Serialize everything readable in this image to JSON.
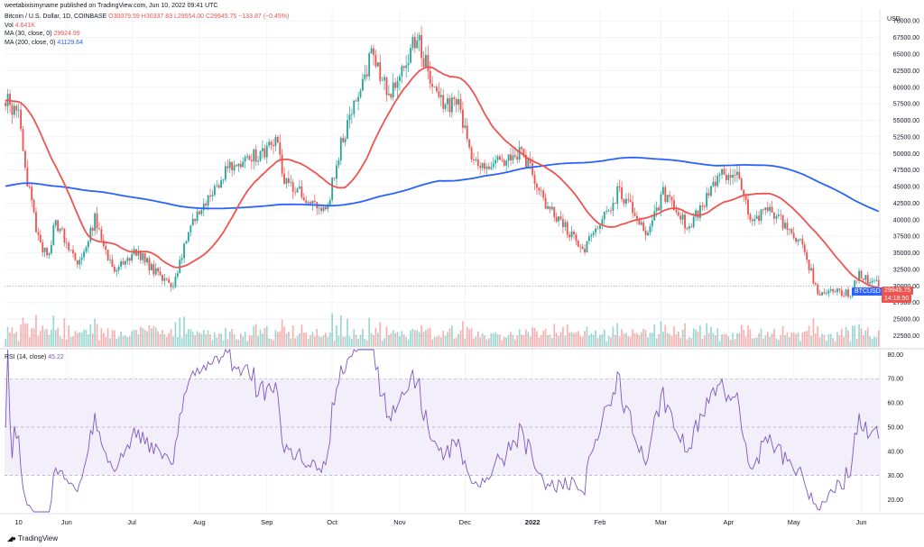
{
  "publish_line": "weetabixismyname published on TradingView.com, Jun 10, 2022 09:41 UTC",
  "legend": {
    "symbol_line": "Bitcoin / U.S. Dollar, 1D, COINBASE",
    "open": "O30079.59",
    "high": "H30337.83",
    "low": "L29554.00",
    "close": "C29945.75",
    "change": "−133.87 (−0.45%)",
    "vol_label": "Vol",
    "vol_value": "4.641K",
    "ma30_label": "MA (30, close, 0)",
    "ma30_value": "29924.99",
    "ma200_label": "MA (200, close, 0)",
    "ma200_value": "41129.64",
    "rsi_label": "RSI (14, close)",
    "rsi_value": "45.22"
  },
  "price_tags": {
    "symbol": "BTCUSD",
    "price": "29945.75",
    "countdown": "14:18:50"
  },
  "brand": "TradingView",
  "colors": {
    "up": "#26a69a",
    "down": "#ef5350",
    "ma30": "#ef5350",
    "ma200": "#2962ff",
    "rsi": "#7e57c2",
    "rsi_band": "#f3effa"
  },
  "chart_data": [
    {
      "type": "candlestick",
      "title": "Bitcoin / U.S. Dollar, 1D, COINBASE",
      "currency_label": "USD",
      "y_ticks": [
        22500,
        25000,
        27500,
        30000,
        32500,
        35000,
        37500,
        40000,
        42500,
        45000,
        47500,
        50000,
        52500,
        55000,
        57500,
        60000,
        62500,
        65000,
        67500,
        70000
      ],
      "ylim": [
        20800,
        71800
      ],
      "x_ticks": [
        "10",
        "Jun",
        "Jul",
        "Aug",
        "Sep",
        "Oct",
        "Nov",
        "Dec",
        "2022",
        "Feb",
        "Mar",
        "Apr",
        "May",
        "Jun"
      ],
      "close_anchors": [
        {
          "date": "2021-05-10",
          "close": 56000
        },
        {
          "date": "2021-05-12",
          "close": 49500
        },
        {
          "date": "2021-05-19",
          "close": 37000
        },
        {
          "date": "2021-05-23",
          "close": 34500
        },
        {
          "date": "2021-05-27",
          "close": 39500
        },
        {
          "date": "2021-06-07",
          "close": 33500
        },
        {
          "date": "2021-06-14",
          "close": 40000
        },
        {
          "date": "2021-06-22",
          "close": 32500
        },
        {
          "date": "2021-07-03",
          "close": 35000
        },
        {
          "date": "2021-07-20",
          "close": 29800
        },
        {
          "date": "2021-07-26",
          "close": 37500
        },
        {
          "date": "2021-08-07",
          "close": 44500
        },
        {
          "date": "2021-08-14",
          "close": 47500
        },
        {
          "date": "2021-08-22",
          "close": 49000
        },
        {
          "date": "2021-09-06",
          "close": 51800
        },
        {
          "date": "2021-09-08",
          "close": 46500
        },
        {
          "date": "2021-09-20",
          "close": 43000
        },
        {
          "date": "2021-09-28",
          "close": 41000
        },
        {
          "date": "2021-10-05",
          "close": 51500
        },
        {
          "date": "2021-10-15",
          "close": 61500
        },
        {
          "date": "2021-10-20",
          "close": 65500
        },
        {
          "date": "2021-10-27",
          "close": 58500
        },
        {
          "date": "2021-11-09",
          "close": 67500
        },
        {
          "date": "2021-11-19",
          "close": 58000
        },
        {
          "date": "2021-11-28",
          "close": 57000
        },
        {
          "date": "2021-12-04",
          "close": 49000
        },
        {
          "date": "2021-12-14",
          "close": 48000
        },
        {
          "date": "2021-12-27",
          "close": 50600
        },
        {
          "date": "2022-01-05",
          "close": 43500
        },
        {
          "date": "2022-01-21",
          "close": 36500
        },
        {
          "date": "2022-01-24",
          "close": 35000
        },
        {
          "date": "2022-02-10",
          "close": 44500
        },
        {
          "date": "2022-02-23",
          "close": 37500
        },
        {
          "date": "2022-03-02",
          "close": 44000
        },
        {
          "date": "2022-03-14",
          "close": 38500
        },
        {
          "date": "2022-03-28",
          "close": 47500
        },
        {
          "date": "2022-04-05",
          "close": 46500
        },
        {
          "date": "2022-04-11",
          "close": 40000
        },
        {
          "date": "2022-04-20",
          "close": 41500
        },
        {
          "date": "2022-04-30",
          "close": 38000
        },
        {
          "date": "2022-05-05",
          "close": 36000
        },
        {
          "date": "2022-05-12",
          "close": 29000
        },
        {
          "date": "2022-05-20",
          "close": 29500
        },
        {
          "date": "2022-05-27",
          "close": 28800
        },
        {
          "date": "2022-05-31",
          "close": 31800
        },
        {
          "date": "2022-06-09",
          "close": 29945.75
        }
      ],
      "series": [
        {
          "name": "MA (30, close, 0)",
          "last": 29924.99
        },
        {
          "name": "MA (200, close, 0)",
          "last": 41129.64
        }
      ],
      "volume_label": "Vol",
      "last_volume": "4.641K"
    },
    {
      "type": "line",
      "title": "RSI (14, close)",
      "y_ticks": [
        20,
        30,
        40,
        50,
        60,
        70,
        80
      ],
      "ylim": [
        15,
        82
      ],
      "bands": [
        30,
        50,
        70
      ],
      "last": 45.22
    }
  ]
}
